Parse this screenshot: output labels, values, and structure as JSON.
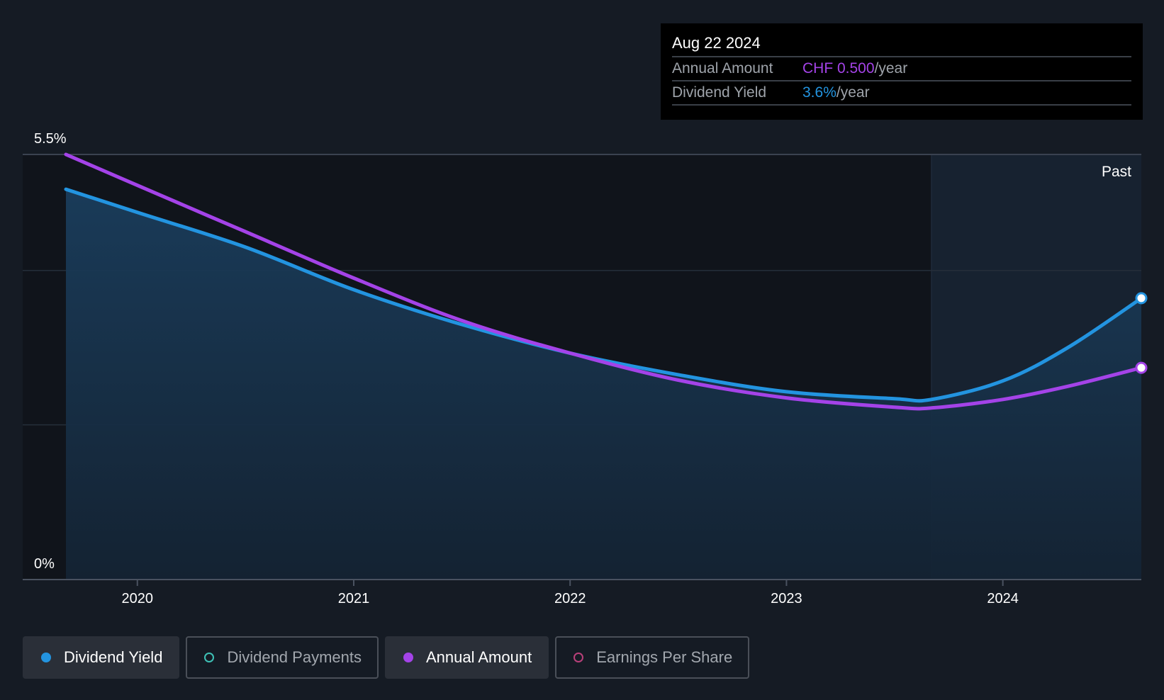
{
  "chart_data": {
    "type": "line",
    "x": [
      2019.67,
      2020.0,
      2020.5,
      2021.0,
      2021.5,
      2022.0,
      2022.5,
      2023.0,
      2023.5,
      2023.67,
      2024.0,
      2024.3,
      2024.64
    ],
    "series": [
      {
        "name": "Dividend Yield",
        "color": "#2394e0",
        "values": [
          5.05,
          4.75,
          4.3,
          3.75,
          3.3,
          2.93,
          2.65,
          2.43,
          2.34,
          2.33,
          2.57,
          3.0,
          3.64
        ]
      },
      {
        "name": "Annual Amount",
        "color": "#a443e8",
        "values": [
          5.5,
          5.1,
          4.5,
          3.9,
          3.35,
          2.93,
          2.58,
          2.35,
          2.23,
          2.22,
          2.33,
          2.5,
          2.74
        ]
      }
    ],
    "ylim": [
      0,
      5.5
    ],
    "xlim": [
      2019.47,
      2024.64
    ],
    "y_tick_labels": [
      "5.5%",
      "0%"
    ],
    "x_ticks": [
      2020,
      2021,
      2022,
      2023,
      2024
    ],
    "x_tick_labels": [
      "2020",
      "2021",
      "2022",
      "2023",
      "2024"
    ],
    "grid": true,
    "past_region_start": 2023.67,
    "past_label": "Past",
    "legend_placement": "bottom-left"
  },
  "tooltip": {
    "date": "Aug 22 2024",
    "rows": [
      {
        "label": "Annual Amount",
        "value": "CHF 0.500",
        "unit": "/year",
        "color": "#a443e8"
      },
      {
        "label": "Dividend Yield",
        "value": "3.6%",
        "unit": "/year",
        "color": "#2394e0"
      }
    ]
  },
  "legend": [
    {
      "label": "Dividend Yield",
      "state": "active",
      "dot": "filled",
      "color": "#2394e0"
    },
    {
      "label": "Dividend Payments",
      "state": "inactive",
      "dot": "hollow",
      "color": "#3ec1b6"
    },
    {
      "label": "Annual Amount",
      "state": "active",
      "dot": "filled",
      "color": "#a443e8"
    },
    {
      "label": "Earnings Per Share",
      "state": "inactive",
      "dot": "hollow",
      "color": "#b8407a"
    }
  ]
}
